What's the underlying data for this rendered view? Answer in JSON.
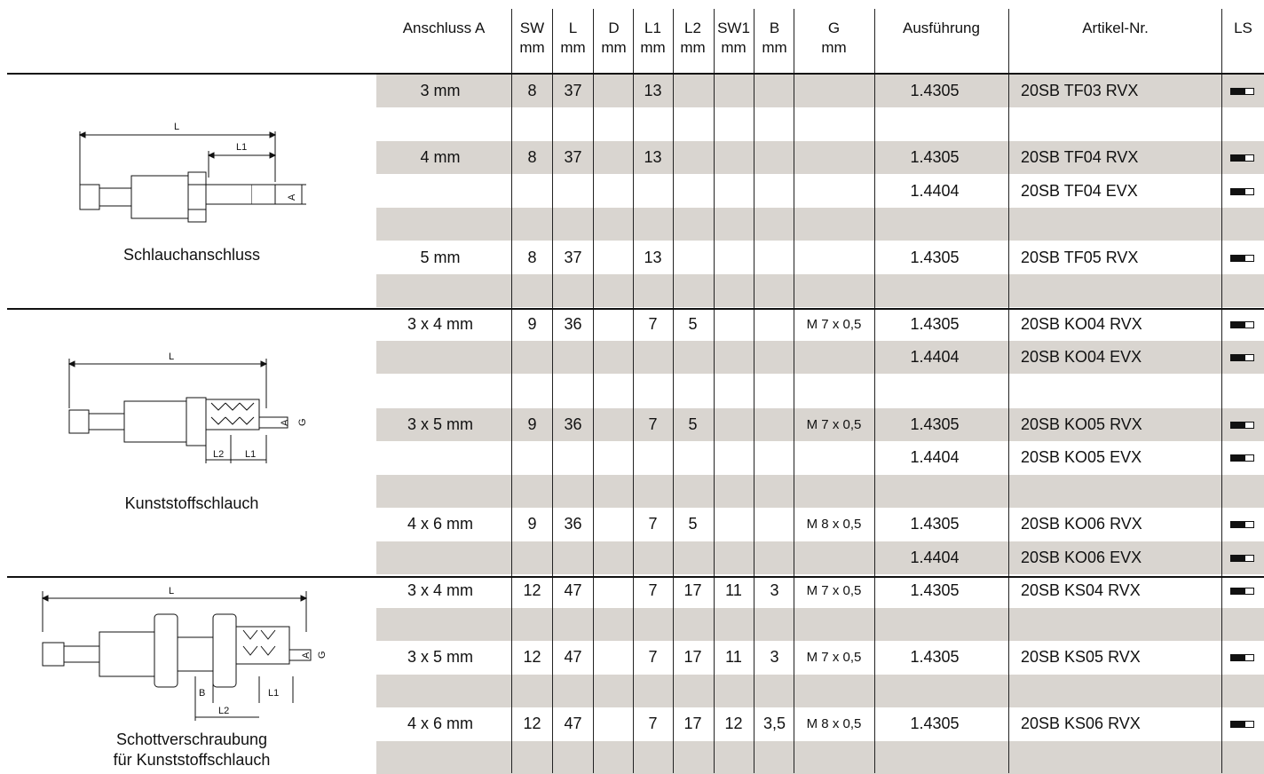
{
  "headers": [
    {
      "key": "anschluss",
      "label": "Anschluss A",
      "unit": ""
    },
    {
      "key": "sw",
      "label": "SW",
      "unit": "mm"
    },
    {
      "key": "l",
      "label": "L",
      "unit": "mm"
    },
    {
      "key": "d",
      "label": "D",
      "unit": "mm"
    },
    {
      "key": "l1",
      "label": "L1",
      "unit": "mm"
    },
    {
      "key": "l2",
      "label": "L2",
      "unit": "mm"
    },
    {
      "key": "sw1",
      "label": "SW1",
      "unit": "mm"
    },
    {
      "key": "b",
      "label": "B",
      "unit": "mm"
    },
    {
      "key": "g",
      "label": "G",
      "unit": "mm"
    },
    {
      "key": "ausfuehrung",
      "label": "Ausführung",
      "unit": ""
    },
    {
      "key": "artikel",
      "label": "Artikel-Nr.",
      "unit": ""
    },
    {
      "key": "ls",
      "label": "LS",
      "unit": ""
    }
  ],
  "groups": [
    {
      "caption": "Schlauchanschluss",
      "drawing": {
        "labels": [
          "L",
          "L1",
          "A"
        ]
      }
    },
    {
      "caption": "Kunststoffschlauch",
      "drawing": {
        "labels": [
          "L",
          "A",
          "G",
          "L2",
          "L1"
        ]
      }
    },
    {
      "caption": "Schottverschraubung\nfür Kunststoffschlauch",
      "drawing": {
        "labels": [
          "L",
          "A",
          "G",
          "B",
          "L1",
          "L2"
        ]
      }
    }
  ],
  "rows": [
    {
      "shaded": true,
      "anschluss": "3 mm",
      "sw": "8",
      "l": "37",
      "d": "",
      "l1": "13",
      "l2": "",
      "sw1": "",
      "b": "",
      "g": "",
      "ausfuehrung": "1.4305",
      "artikel": "20SB TF03 RVX",
      "ls": true
    },
    {
      "shaded": false,
      "anschluss": "",
      "sw": "",
      "l": "",
      "d": "",
      "l1": "",
      "l2": "",
      "sw1": "",
      "b": "",
      "g": "",
      "ausfuehrung": "",
      "artikel": "",
      "ls": false
    },
    {
      "shaded": true,
      "anschluss": "4 mm",
      "sw": "8",
      "l": "37",
      "d": "",
      "l1": "13",
      "l2": "",
      "sw1": "",
      "b": "",
      "g": "",
      "ausfuehrung": "1.4305",
      "artikel": "20SB TF04 RVX",
      "ls": true
    },
    {
      "shaded": false,
      "anschluss": "",
      "sw": "",
      "l": "",
      "d": "",
      "l1": "",
      "l2": "",
      "sw1": "",
      "b": "",
      "g": "",
      "ausfuehrung": "1.4404",
      "artikel": "20SB TF04 EVX",
      "ls": true
    },
    {
      "shaded": true,
      "anschluss": "",
      "sw": "",
      "l": "",
      "d": "",
      "l1": "",
      "l2": "",
      "sw1": "",
      "b": "",
      "g": "",
      "ausfuehrung": "",
      "artikel": "",
      "ls": false
    },
    {
      "shaded": false,
      "anschluss": "5 mm",
      "sw": "8",
      "l": "37",
      "d": "",
      "l1": "13",
      "l2": "",
      "sw1": "",
      "b": "",
      "g": "",
      "ausfuehrung": "1.4305",
      "artikel": "20SB TF05 RVX",
      "ls": true
    },
    {
      "shaded": true,
      "anschluss": "",
      "sw": "",
      "l": "",
      "d": "",
      "l1": "",
      "l2": "",
      "sw1": "",
      "b": "",
      "g": "",
      "ausfuehrung": "",
      "artikel": "",
      "ls": false
    },
    {
      "shaded": false,
      "anschluss": "3 x 4 mm",
      "sw": "9",
      "l": "36",
      "d": "",
      "l1": "7",
      "l2": "5",
      "sw1": "",
      "b": "",
      "g": "M 7 x 0,5",
      "ausfuehrung": "1.4305",
      "artikel": "20SB KO04 RVX",
      "ls": true
    },
    {
      "shaded": true,
      "anschluss": "",
      "sw": "",
      "l": "",
      "d": "",
      "l1": "",
      "l2": "",
      "sw1": "",
      "b": "",
      "g": "",
      "ausfuehrung": "1.4404",
      "artikel": "20SB KO04 EVX",
      "ls": true
    },
    {
      "shaded": false,
      "anschluss": "",
      "sw": "",
      "l": "",
      "d": "",
      "l1": "",
      "l2": "",
      "sw1": "",
      "b": "",
      "g": "",
      "ausfuehrung": "",
      "artikel": "",
      "ls": false
    },
    {
      "shaded": true,
      "anschluss": "3 x 5 mm",
      "sw": "9",
      "l": "36",
      "d": "",
      "l1": "7",
      "l2": "5",
      "sw1": "",
      "b": "",
      "g": "M 7 x 0,5",
      "ausfuehrung": "1.4305",
      "artikel": "20SB KO05 RVX",
      "ls": true
    },
    {
      "shaded": false,
      "anschluss": "",
      "sw": "",
      "l": "",
      "d": "",
      "l1": "",
      "l2": "",
      "sw1": "",
      "b": "",
      "g": "",
      "ausfuehrung": "1.4404",
      "artikel": "20SB KO05 EVX",
      "ls": true
    },
    {
      "shaded": true,
      "anschluss": "",
      "sw": "",
      "l": "",
      "d": "",
      "l1": "",
      "l2": "",
      "sw1": "",
      "b": "",
      "g": "",
      "ausfuehrung": "",
      "artikel": "",
      "ls": false
    },
    {
      "shaded": false,
      "anschluss": "4 x 6 mm",
      "sw": "9",
      "l": "36",
      "d": "",
      "l1": "7",
      "l2": "5",
      "sw1": "",
      "b": "",
      "g": "M 8 x 0,5",
      "ausfuehrung": "1.4305",
      "artikel": "20SB KO06 RVX",
      "ls": true
    },
    {
      "shaded": true,
      "anschluss": "",
      "sw": "",
      "l": "",
      "d": "",
      "l1": "",
      "l2": "",
      "sw1": "",
      "b": "",
      "g": "",
      "ausfuehrung": "1.4404",
      "artikel": "20SB KO06 EVX",
      "ls": true
    },
    {
      "shaded": false,
      "anschluss": "3 x 4 mm",
      "sw": "12",
      "l": "47",
      "d": "",
      "l1": "7",
      "l2": "17",
      "sw1": "11",
      "b": "3",
      "g": "M 7 x 0,5",
      "ausfuehrung": "1.4305",
      "artikel": "20SB KS04 RVX",
      "ls": true
    },
    {
      "shaded": true,
      "anschluss": "",
      "sw": "",
      "l": "",
      "d": "",
      "l1": "",
      "l2": "",
      "sw1": "",
      "b": "",
      "g": "",
      "ausfuehrung": "",
      "artikel": "",
      "ls": false
    },
    {
      "shaded": false,
      "anschluss": "3 x 5 mm",
      "sw": "12",
      "l": "47",
      "d": "",
      "l1": "7",
      "l2": "17",
      "sw1": "11",
      "b": "3",
      "g": "M 7 x 0,5",
      "ausfuehrung": "1.4305",
      "artikel": "20SB KS05 RVX",
      "ls": true
    },
    {
      "shaded": true,
      "anschluss": "",
      "sw": "",
      "l": "",
      "d": "",
      "l1": "",
      "l2": "",
      "sw1": "",
      "b": "",
      "g": "",
      "ausfuehrung": "",
      "artikel": "",
      "ls": false
    },
    {
      "shaded": false,
      "anschluss": "4 x 6 mm",
      "sw": "12",
      "l": "47",
      "d": "",
      "l1": "7",
      "l2": "17",
      "sw1": "12",
      "b": "3,5",
      "g": "M 8 x 0,5",
      "ausfuehrung": "1.4305",
      "artikel": "20SB KS06 RVX",
      "ls": true
    },
    {
      "shaded": true,
      "anschluss": "",
      "sw": "",
      "l": "",
      "d": "",
      "l1": "",
      "l2": "",
      "sw1": "",
      "b": "",
      "g": "",
      "ausfuehrung": "",
      "artikel": "",
      "ls": false
    }
  ],
  "colors": {
    "band": "#d9d5d0",
    "line": "#111111",
    "text": "#111111"
  },
  "icons": {
    "ls": "availability-bar-icon"
  }
}
